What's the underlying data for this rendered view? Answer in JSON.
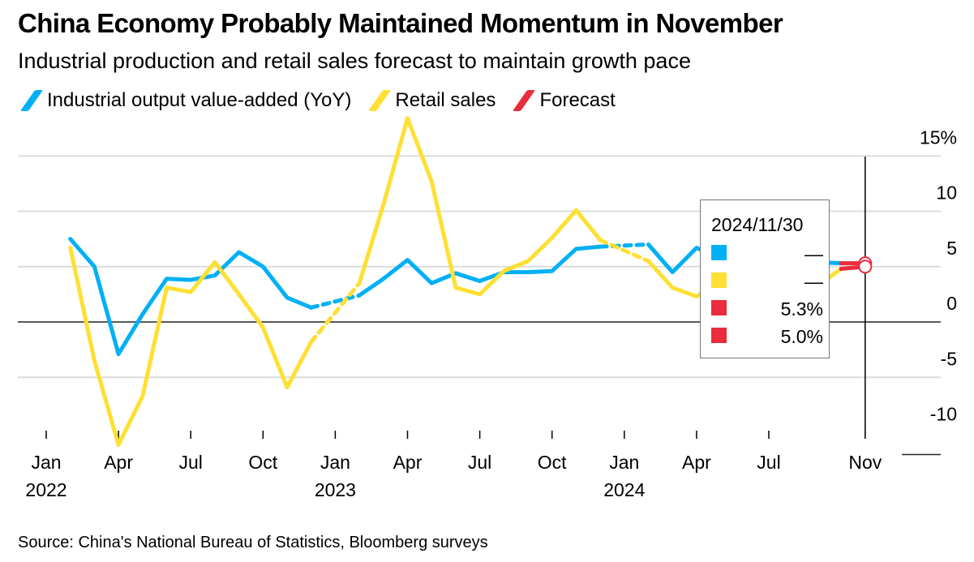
{
  "header": {
    "title": "China Economy Probably Maintained Momentum in November",
    "subtitle": "Industrial production and retail sales forecast to maintain growth pace"
  },
  "legend": [
    {
      "label": "Industrial output value-added (YoY)",
      "color": "#00b0f6",
      "icon": "slash-line-icon"
    },
    {
      "label": "Retail sales",
      "color": "#ffdf33",
      "icon": "slash-line-icon"
    },
    {
      "label": "Forecast",
      "color": "#ea2c3c",
      "icon": "slash-line-icon"
    }
  ],
  "tooltip": {
    "date": "2024/11/30",
    "rows": [
      {
        "color": "#00b0f6",
        "value": "—"
      },
      {
        "color": "#ffdf33",
        "value": "—"
      },
      {
        "color": "#ea2c3c",
        "value": "5.3%"
      },
      {
        "color": "#ea2c3c",
        "value": "5.0%"
      }
    ]
  },
  "source": "Source: China's National Bureau of Statistics, Bloomberg surveys",
  "chart_data": {
    "type": "line",
    "title": "China Economy Probably Maintained Momentum in November",
    "subtitle": "Industrial production and retail sales forecast to maintain growth pace",
    "xlabel": "",
    "ylabel": "",
    "ylim": [
      -10,
      15
    ],
    "yticks": [
      15,
      10,
      5,
      0,
      -5,
      -10
    ],
    "ytick_labels": [
      "15%",
      "10",
      "5",
      "0",
      "-5",
      "-10"
    ],
    "y_axis_position": "right",
    "xlim": [
      "2022-01",
      "2024-11"
    ],
    "xticks": [
      {
        "month": "2022-01",
        "label": "Jan",
        "year": "2022"
      },
      {
        "month": "2022-04",
        "label": "Apr",
        "year": ""
      },
      {
        "month": "2022-07",
        "label": "Jul",
        "year": ""
      },
      {
        "month": "2022-10",
        "label": "Oct",
        "year": ""
      },
      {
        "month": "2023-01",
        "label": "Jan",
        "year": "2023"
      },
      {
        "month": "2023-04",
        "label": "Apr",
        "year": ""
      },
      {
        "month": "2023-07",
        "label": "Jul",
        "year": ""
      },
      {
        "month": "2023-10",
        "label": "Oct",
        "year": ""
      },
      {
        "month": "2024-01",
        "label": "Jan",
        "year": "2024"
      },
      {
        "month": "2024-04",
        "label": "Apr",
        "year": ""
      },
      {
        "month": "2024-07",
        "label": "Jul",
        "year": ""
      },
      {
        "month": "2024-11",
        "label": "Nov",
        "year": ""
      }
    ],
    "grid": true,
    "legend_position": "top-left",
    "x": [
      "2022-02",
      "2022-03",
      "2022-04",
      "2022-05",
      "2022-06",
      "2022-07",
      "2022-08",
      "2022-09",
      "2022-10",
      "2022-11",
      "2022-12",
      "2023-01",
      "2023-02",
      "2023-03",
      "2023-04",
      "2023-05",
      "2023-06",
      "2023-07",
      "2023-08",
      "2023-09",
      "2023-10",
      "2023-11",
      "2023-12",
      "2024-01",
      "2024-02",
      "2024-03",
      "2024-04",
      "2024-05",
      "2024-06",
      "2024-07",
      "2024-08",
      "2024-09",
      "2024-10"
    ],
    "series": [
      {
        "name": "Industrial output value-added (YoY)",
        "color": "#00b0f6",
        "values": [
          7.5,
          5.0,
          -2.9,
          0.7,
          3.9,
          3.8,
          4.2,
          6.3,
          5.0,
          2.2,
          1.3,
          null,
          2.4,
          3.9,
          5.6,
          3.5,
          4.4,
          3.7,
          4.5,
          4.5,
          4.6,
          6.6,
          6.8,
          null,
          7.0,
          4.5,
          6.7,
          5.6,
          5.3,
          5.1,
          4.5,
          5.4,
          5.3
        ]
      },
      {
        "name": "Retail sales",
        "color": "#ffdf33",
        "values": [
          6.7,
          -3.5,
          -11.1,
          -6.7,
          3.1,
          2.7,
          5.4,
          2.5,
          -0.5,
          -5.9,
          -1.8,
          null,
          3.5,
          10.6,
          18.4,
          12.7,
          3.1,
          2.5,
          4.6,
          5.5,
          7.6,
          10.1,
          7.4,
          null,
          5.5,
          3.1,
          2.3,
          3.7,
          2.0,
          2.7,
          2.1,
          3.2,
          4.8
        ]
      },
      {
        "name": "Forecast",
        "color": "#ea2c3c",
        "points": [
          {
            "x": "2024-11",
            "value": 5.3,
            "series": "Industrial output value-added (YoY)"
          },
          {
            "x": "2024-11",
            "value": 5.0,
            "series": "Retail sales"
          }
        ]
      }
    ],
    "annotations": [
      "Jan/Feb combined data shown as dashed segments",
      "Vertical marker at Nov 2024"
    ]
  }
}
